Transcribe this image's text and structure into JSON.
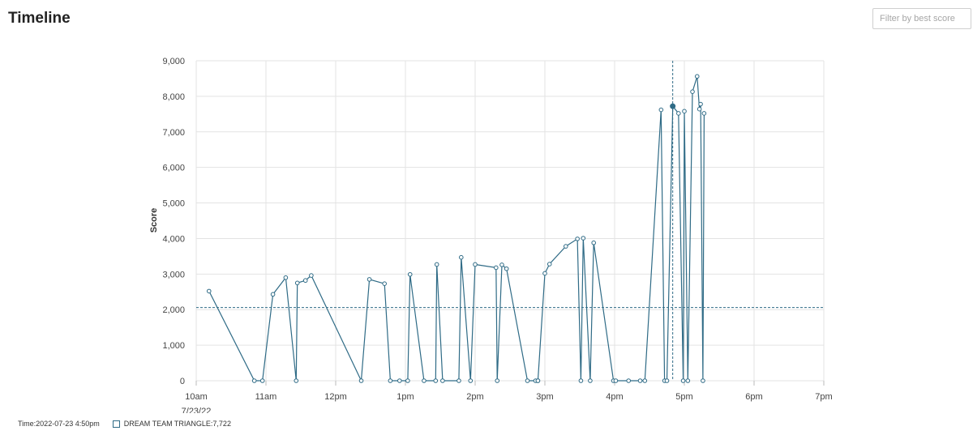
{
  "header": {
    "title": "Timeline",
    "filter_placeholder": "Filter by best score"
  },
  "footer": {
    "time_label": "Time:",
    "time_value": "2022-07-23 4:50pm",
    "series_label": "DREAM TEAM TRIANGLE:",
    "series_value": "7,722"
  },
  "colors": {
    "series": "#2f6b86",
    "grid": "#e3e3e3",
    "reference": "#2f6b86"
  },
  "chart_data": {
    "type": "line",
    "ylabel": "Score",
    "xlabel": "",
    "date_label": "7/23/22",
    "x_tick_labels": [
      "10am",
      "11am",
      "12pm",
      "1pm",
      "2pm",
      "3pm",
      "4pm",
      "5pm",
      "6pm",
      "7pm"
    ],
    "x_range": [
      "10:00",
      "19:00"
    ],
    "y_ticks": [
      0,
      1000,
      2000,
      3000,
      4000,
      5000,
      6000,
      7000,
      8000,
      9000
    ],
    "y_tick_labels": [
      "0",
      "1,000",
      "2,000",
      "3,000",
      "4,000",
      "5,000",
      "6,000",
      "7,000",
      "8,000",
      "9,000"
    ],
    "ylim": [
      0,
      9000
    ],
    "grid": true,
    "reference_line": {
      "y": 2060
    },
    "crosshair_time": "16:50",
    "highlight_point": {
      "x": "16:50",
      "y": 7722
    },
    "series": [
      {
        "x": [
          "10:11",
          "10:50",
          "10:57",
          "11:06",
          "11:17",
          "11:26",
          "11:27",
          "11:34",
          "11:39",
          "12:22",
          "12:29",
          "12:42",
          "12:47",
          "12:55",
          "13:02",
          "13:04",
          "13:16",
          "13:26",
          "13:27",
          "13:32",
          "13:46",
          "13:48",
          "13:56",
          "14:00",
          "14:18",
          "14:19",
          "14:23",
          "14:27",
          "14:45",
          "14:52",
          "14:54",
          "14:54",
          "15:00",
          "15:04",
          "15:18",
          "15:28",
          "15:31",
          "15:33",
          "15:39",
          "15:42",
          "15:59",
          "16:01",
          "16:12",
          "16:22",
          "16:26",
          "16:40",
          "16:43",
          "16:45",
          "16:50",
          "16:55",
          "16:59",
          "17:00",
          "17:03",
          "17:07",
          "17:11",
          "17:13",
          "17:14",
          "17:16",
          "17:17"
        ],
        "values": [
          2520,
          0,
          0,
          2430,
          2900,
          0,
          2750,
          2820,
          2960,
          0,
          2850,
          2730,
          0,
          0,
          0,
          2990,
          0,
          0,
          3270,
          0,
          0,
          3470,
          0,
          3270,
          3180,
          0,
          3260,
          3150,
          0,
          0,
          0,
          0,
          3020,
          3280,
          3780,
          3990,
          0,
          4010,
          0,
          3880,
          0,
          0,
          0,
          0,
          0,
          7620,
          0,
          0,
          7722,
          7520,
          0,
          7580,
          0,
          8130,
          8560,
          7640,
          7780,
          0,
          7520
        ]
      }
    ]
  }
}
